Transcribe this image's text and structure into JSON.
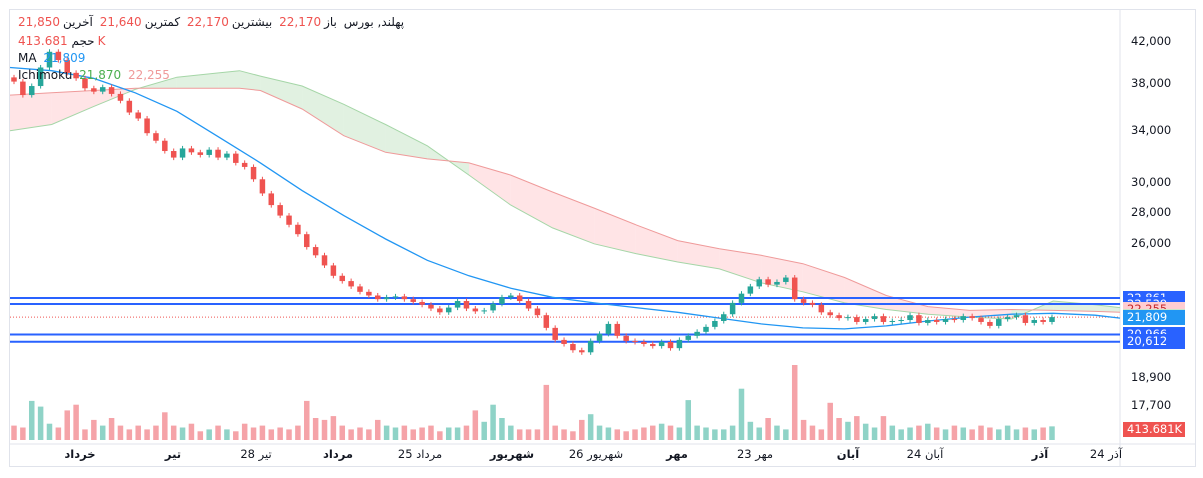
{
  "legend": {
    "symbol": "پهلند, بورس",
    "open_label": "باز",
    "open_value": "22,170",
    "high_label": "بیشترین",
    "high_value": "22,170",
    "low_label": "کمترین",
    "low_value": "21,640",
    "close_label": "آخرین",
    "close_value": "21,850",
    "volume_label": "حجم",
    "volume_value": "413.681K",
    "ma_label": "MA",
    "ma_value": "21,809",
    "ichimoku_label": "Ichimoku",
    "ichimoku_value1": "21,870",
    "ichimoku_value2": "22,255"
  },
  "price_tags": [
    {
      "text": "22,861",
      "price": 22861,
      "color": "#2962ff"
    },
    {
      "text": "22,539",
      "price": 22539,
      "color": "#2962ff"
    },
    {
      "text": "22,255",
      "price": 22255,
      "color": "#ffcdd2",
      "text_color": "#c62828"
    },
    {
      "text": "21,870",
      "price": 21870,
      "color": "#c8e6c9",
      "text_color": "#1b5e20"
    },
    {
      "text": "21,850",
      "price": 21850,
      "color": "#ef5350"
    },
    {
      "text": "21,809",
      "price": 21809,
      "color": "#2196f3"
    },
    {
      "text": "20,966",
      "price": 20966,
      "color": "#2962ff"
    },
    {
      "text": "20,612",
      "price": 20612,
      "color": "#2962ff"
    },
    {
      "text": "413.681K",
      "price": null,
      "color": "#ef5350"
    }
  ],
  "colors": {
    "up": "#26a69a",
    "down": "#ef5350",
    "vol_up": "#8fd3c7",
    "vol_down": "#f5a3a8",
    "ma": "#2196f3",
    "cloud_bull": "#c8e6c9",
    "cloud_bear": "#ffcdd2",
    "hline": "#2962ff"
  },
  "chart_data": {
    "type": "candlestick",
    "title": "پهلند, بورس",
    "y_scale": "log",
    "ylim": [
      17200,
      44000
    ],
    "y_ticks": [
      42000,
      38000,
      34000,
      30000,
      28000,
      26000,
      18900,
      17700
    ],
    "y_tick_labels": [
      "42,000",
      "38,000",
      "34,000",
      "30,000",
      "28,000",
      "26,000",
      "18,900",
      "17,700"
    ],
    "x_labels": [
      {
        "text": "خرداد",
        "bold": true
      },
      {
        "text": "تیر",
        "bold": true
      },
      {
        "text": "28 تیر",
        "bold": false
      },
      {
        "text": "مرداد",
        "bold": true
      },
      {
        "text": "25 مرداد",
        "bold": false
      },
      {
        "text": "شهریور",
        "bold": true
      },
      {
        "text": "26 شهریور",
        "bold": false
      },
      {
        "text": "مهر",
        "bold": true
      },
      {
        "text": "23 مهر",
        "bold": false
      },
      {
        "text": "آبان",
        "bold": true
      },
      {
        "text": "24 آبان",
        "bold": false
      },
      {
        "text": "آذر",
        "bold": true
      },
      {
        "text": "24 آذر",
        "bold": false
      }
    ],
    "horizontal_levels": [
      22861,
      22539,
      20966,
      20612
    ],
    "close_line": 21850,
    "closes": [
      38200,
      37000,
      37800,
      39500,
      41000,
      40200,
      39000,
      38500,
      37600,
      37300,
      37700,
      37100,
      36500,
      35500,
      35000,
      33800,
      33200,
      32400,
      31900,
      32600,
      32300,
      32100,
      32500,
      31900,
      32200,
      31500,
      31200,
      30300,
      29300,
      28500,
      27800,
      27200,
      26600,
      25800,
      25300,
      24700,
      24100,
      23800,
      23500,
      23200,
      23000,
      22800,
      22900,
      22950,
      22800,
      22650,
      22500,
      22300,
      22100,
      22350,
      22700,
      22300,
      22150,
      22200,
      22550,
      22900,
      23000,
      22700,
      22300,
      21950,
      21300,
      20700,
      20500,
      20200,
      20100,
      20650,
      21000,
      21500,
      20900,
      20650,
      20600,
      20500,
      20400,
      20600,
      20300,
      20700,
      20900,
      21100,
      21350,
      21650,
      22000,
      22600,
      23100,
      23500,
      23900,
      23600,
      23750,
      24000,
      22800,
      22600,
      22500,
      22100,
      21950,
      21800,
      21850,
      21600,
      21750,
      21900,
      21600,
      21650,
      21700,
      21950,
      21550,
      21700,
      21600,
      21750,
      21700,
      21900,
      21800,
      21600,
      21400,
      21750,
      21850,
      21950,
      21550,
      21700,
      21600,
      21850
    ],
    "volumes": [
      0.3,
      0.25,
      0.95,
      0.8,
      0.35,
      0.25,
      0.7,
      0.85,
      0.2,
      0.45,
      0.3,
      0.5,
      0.3,
      0.2,
      0.3,
      0.2,
      0.3,
      0.65,
      0.3,
      0.25,
      0.35,
      0.15,
      0.2,
      0.3,
      0.2,
      0.15,
      0.35,
      0.25,
      0.3,
      0.2,
      0.25,
      0.2,
      0.3,
      0.95,
      0.5,
      0.45,
      0.55,
      0.3,
      0.2,
      0.25,
      0.2,
      0.45,
      0.3,
      0.25,
      0.3,
      0.2,
      0.25,
      0.3,
      0.15,
      0.25,
      0.25,
      0.3,
      0.7,
      0.4,
      0.85,
      0.5,
      0.3,
      0.2,
      0.2,
      0.2,
      1.45,
      0.3,
      0.2,
      0.15,
      0.45,
      0.6,
      0.3,
      0.25,
      0.2,
      0.15,
      0.2,
      0.25,
      0.3,
      0.35,
      0.3,
      0.25,
      1.05,
      0.3,
      0.25,
      0.2,
      0.2,
      0.3,
      1.35,
      0.4,
      0.25,
      0.5,
      0.3,
      0.2,
      2.3,
      0.45,
      0.3,
      0.2,
      0.9,
      0.5,
      0.4,
      0.55,
      0.35,
      0.25,
      0.55,
      0.3,
      0.2,
      0.25,
      0.3,
      0.35,
      0.25,
      0.2,
      0.3,
      0.25,
      0.2,
      0.3,
      0.25,
      0.2,
      0.3,
      0.2,
      0.25,
      0.2,
      0.25,
      0.28
    ],
    "ma_line": [
      [
        0,
        39500
      ],
      [
        10,
        39200
      ],
      [
        20,
        38500
      ],
      [
        30,
        37200
      ],
      [
        40,
        35600
      ],
      [
        50,
        33500
      ],
      [
        60,
        31500
      ],
      [
        70,
        29500
      ],
      [
        80,
        27800
      ],
      [
        90,
        26300
      ],
      [
        100,
        25000
      ],
      [
        110,
        24100
      ],
      [
        120,
        23400
      ],
      [
        130,
        22900
      ],
      [
        140,
        22600
      ],
      [
        150,
        22350
      ],
      [
        160,
        22100
      ],
      [
        170,
        21800
      ],
      [
        180,
        21500
      ],
      [
        190,
        21300
      ],
      [
        200,
        21250
      ],
      [
        210,
        21400
      ],
      [
        220,
        21650
      ],
      [
        230,
        21850
      ],
      [
        240,
        22000
      ],
      [
        250,
        22050
      ],
      [
        260,
        21950
      ],
      [
        266,
        21800
      ]
    ],
    "cloud_span_a": [
      [
        0,
        34000
      ],
      [
        10,
        34500
      ],
      [
        20,
        36000
      ],
      [
        30,
        37500
      ],
      [
        40,
        38600
      ],
      [
        50,
        39000
      ],
      [
        55,
        39200
      ],
      [
        60,
        38700
      ],
      [
        70,
        37800
      ],
      [
        80,
        36200
      ],
      [
        90,
        34500
      ],
      [
        100,
        32800
      ],
      [
        110,
        30600
      ],
      [
        120,
        28500
      ],
      [
        130,
        27000
      ],
      [
        140,
        26000
      ],
      [
        150,
        25400
      ],
      [
        160,
        24900
      ],
      [
        170,
        24500
      ],
      [
        180,
        23700
      ],
      [
        190,
        23200
      ],
      [
        200,
        22600
      ],
      [
        210,
        22250
      ],
      [
        220,
        22000
      ],
      [
        230,
        21850
      ],
      [
        240,
        21750
      ],
      [
        250,
        22700
      ],
      [
        260,
        22500
      ],
      [
        266,
        22350
      ]
    ],
    "cloud_span_b": [
      [
        0,
        37000
      ],
      [
        10,
        37200
      ],
      [
        20,
        37400
      ],
      [
        30,
        37600
      ],
      [
        40,
        37600
      ],
      [
        50,
        37600
      ],
      [
        55,
        37600
      ],
      [
        60,
        37400
      ],
      [
        70,
        35800
      ],
      [
        80,
        33600
      ],
      [
        90,
        32300
      ],
      [
        100,
        31800
      ],
      [
        110,
        31500
      ],
      [
        120,
        30600
      ],
      [
        130,
        29400
      ],
      [
        140,
        28300
      ],
      [
        150,
        27200
      ],
      [
        160,
        26200
      ],
      [
        170,
        25700
      ],
      [
        180,
        25300
      ],
      [
        190,
        24800
      ],
      [
        200,
        24000
      ],
      [
        210,
        23000
      ],
      [
        220,
        22400
      ],
      [
        230,
        22200
      ],
      [
        240,
        22250
      ],
      [
        250,
        22200
      ],
      [
        260,
        22150
      ],
      [
        266,
        22100
      ]
    ]
  }
}
